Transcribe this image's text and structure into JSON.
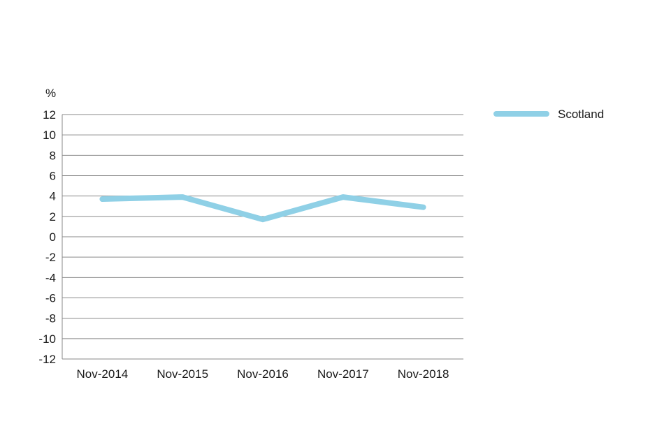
{
  "chart_data": {
    "type": "line",
    "y_unit": "%",
    "categories": [
      "Nov-2014",
      "Nov-2015",
      "Nov-2016",
      "Nov-2017",
      "Nov-2018"
    ],
    "series": [
      {
        "name": "Scotland",
        "values": [
          3.7,
          3.9,
          1.7,
          3.9,
          2.9
        ],
        "color": "#8fd0e6"
      }
    ],
    "ylim": [
      -12,
      12
    ],
    "y_ticks": [
      12,
      10,
      8,
      6,
      4,
      2,
      0,
      -2,
      -4,
      -6,
      -8,
      -10,
      -12
    ],
    "grid": true,
    "legend_position": "top-right"
  }
}
